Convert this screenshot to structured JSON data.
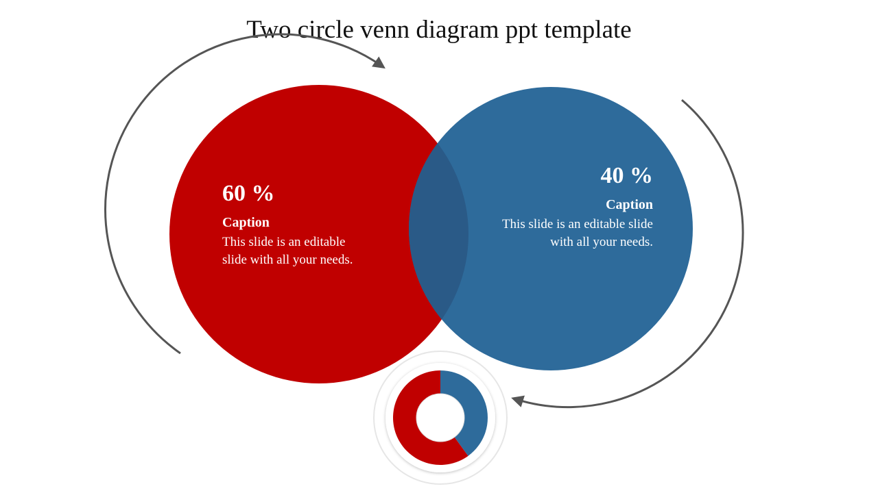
{
  "title": "Two circle venn diagram ppt template",
  "colors": {
    "red": "#c00000",
    "blue": "#2e6b9b",
    "overlap": "#2a5a87",
    "arc": "#555555"
  },
  "left": {
    "percent": "60 %",
    "caption": "Caption",
    "text": "This slide is an editable slide with all your needs.",
    "value": 60
  },
  "right": {
    "percent": "40 %",
    "caption": "Caption",
    "text": "This slide is an editable slide with all your needs.",
    "value": 40
  }
}
